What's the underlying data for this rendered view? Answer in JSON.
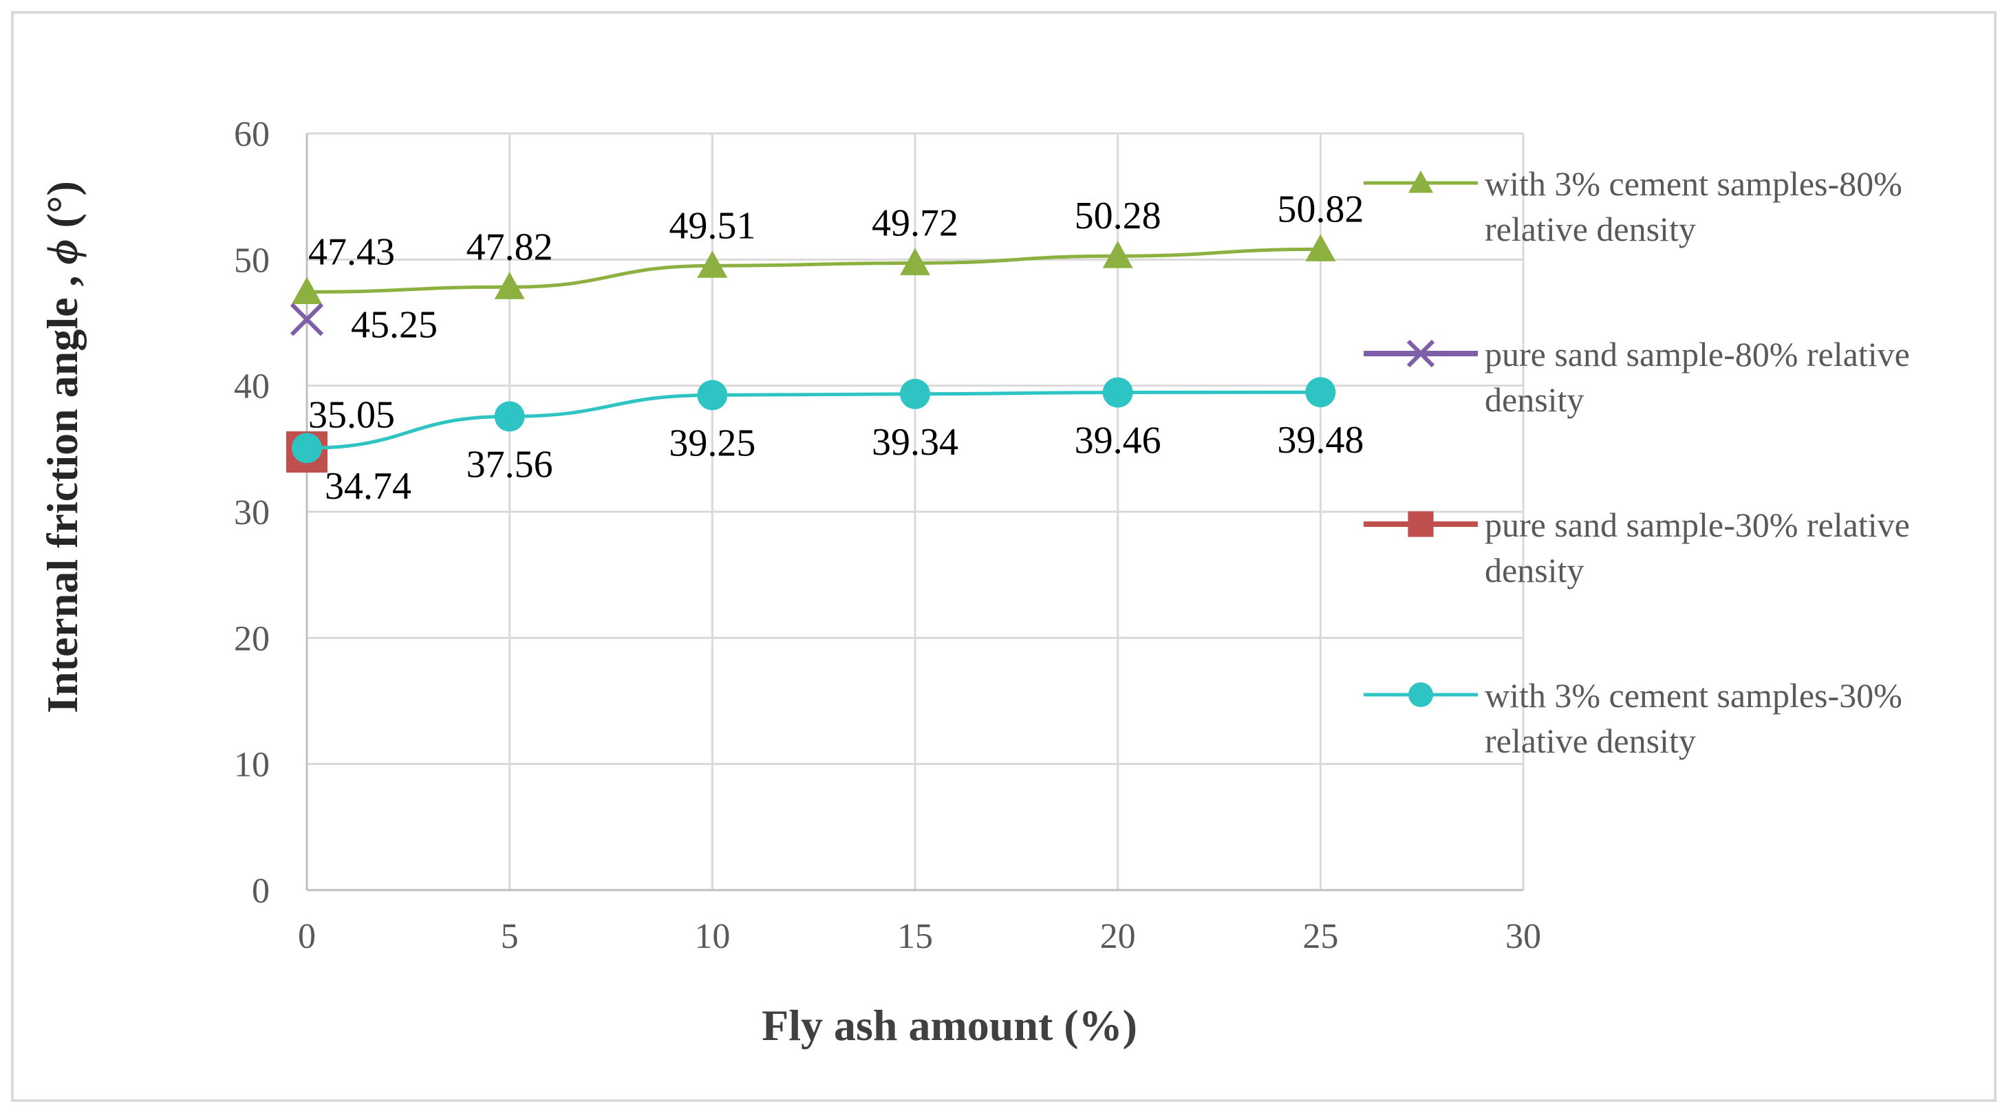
{
  "chart_data": {
    "type": "line",
    "title": "",
    "xlabel": "Fly ash amount (%)",
    "ylabel_main": "Internal friction angle , ",
    "ylabel_symbol": "ϕ",
    "ylabel_unit": " (°)",
    "xlim": [
      0,
      30
    ],
    "ylim": [
      0,
      60
    ],
    "x_ticks": [
      0,
      5,
      10,
      15,
      20,
      25,
      30
    ],
    "y_ticks": [
      0,
      10,
      20,
      30,
      40,
      50,
      60
    ],
    "grid": true,
    "legend_position": "right",
    "series": [
      {
        "name": "with 3% cement samples-80% relative density",
        "legend_lines": [
          "with 3% cement samples-80%",
          "relative density"
        ],
        "color": "#8db141",
        "marker": "triangle",
        "x": [
          0,
          5,
          10,
          15,
          20,
          25
        ],
        "values": [
          47.43,
          47.82,
          49.51,
          49.72,
          50.28,
          50.82
        ],
        "labels": [
          "47.43",
          "47.82",
          "49.51",
          "49.72",
          "50.28",
          "50.82"
        ],
        "label_position": "above"
      },
      {
        "name": "pure sand sample-80% relative density",
        "legend_lines": [
          "pure sand sample-80% relative",
          "density"
        ],
        "color": "#7e5ea7",
        "marker": "x",
        "x": [
          0
        ],
        "values": [
          45.25
        ],
        "labels": [
          "45.25"
        ],
        "label_position": "right-below"
      },
      {
        "name": "pure sand sample-30% relative density",
        "legend_lines": [
          "pure sand sample-30% relative",
          "density"
        ],
        "color": "#c0504d",
        "marker": "square",
        "x": [
          0
        ],
        "values": [
          34.74
        ],
        "labels": [
          "34.74"
        ],
        "label_position": "right-below"
      },
      {
        "name": "with 3% cement samples-30% relative density",
        "legend_lines": [
          "with 3% cement samples-30%",
          "relative density"
        ],
        "color": "#2fc4c4",
        "marker": "circle",
        "x": [
          0,
          5,
          10,
          15,
          20,
          25
        ],
        "values": [
          35.05,
          37.56,
          39.25,
          39.34,
          39.46,
          39.48
        ],
        "labels": [
          "35.05",
          "37.56",
          "39.25",
          "39.34",
          "39.46",
          "39.48"
        ],
        "label_position": "below"
      }
    ]
  }
}
